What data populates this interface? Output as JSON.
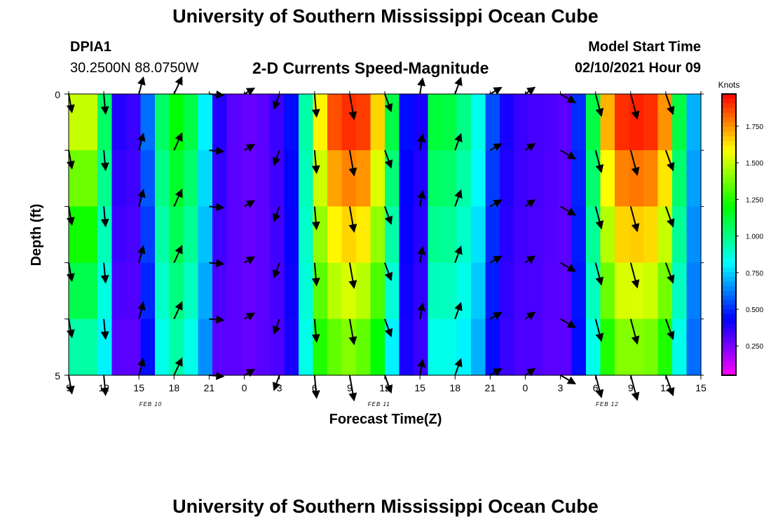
{
  "header": {
    "title": "University of Southern Mississippi Ocean Cube",
    "station": "DPIA1",
    "coordinates": "30.2500N 88.0750W",
    "subtitle": "2-D Currents Speed-Magnitude",
    "model_start_label": "Model Start Time",
    "model_start_value": "02/10/2021 Hour 09"
  },
  "footer": {
    "title": "University of Southern Mississippi Ocean Cube"
  },
  "chart_data": {
    "type": "heatmap",
    "title": "2-D Currents Speed-Magnitude",
    "xlabel": "Forecast Time(Z)",
    "ylabel": "Depth (ft)",
    "x_tick_labels": [
      "9",
      "12",
      "15",
      "18",
      "21",
      "0",
      "3",
      "6",
      "9",
      "12",
      "15",
      "18",
      "21",
      "0",
      "3",
      "6",
      "9",
      "12",
      "15"
    ],
    "date_labels": [
      {
        "text": "FEB 10",
        "hour_index": 7
      },
      {
        "text": "FEB 11",
        "hour_index": 26.5
      },
      {
        "text": "FEB 12",
        "hour_index": 46
      }
    ],
    "xlim_hours": [
      0,
      54
    ],
    "y_tick_labels": [
      "0",
      "5"
    ],
    "ylim_ft": [
      0,
      5
    ],
    "colorbar": {
      "unit_label": "Knots",
      "range": [
        0.05,
        1.97
      ],
      "ticks": [
        "1.750",
        "1.500",
        "1.250",
        "1.000",
        "0.750",
        "0.500",
        "0.250"
      ],
      "tick_values": [
        1.75,
        1.5,
        1.25,
        1.0,
        0.75,
        0.5,
        0.25
      ]
    },
    "speed_surface_knots": [
      1.5,
      1.5,
      1.05,
      0.38,
      0.35,
      0.6,
      1.05,
      1.2,
      1.1,
      0.8,
      0.38,
      0.3,
      0.28,
      0.3,
      0.35,
      0.45,
      0.95,
      1.6,
      1.85,
      1.9,
      1.88,
      1.65,
      1.1,
      0.45,
      0.4,
      1.12,
      1.1,
      1.0,
      0.85,
      0.55,
      0.4,
      0.35,
      0.33,
      0.32,
      0.3,
      0.5,
      1.1,
      1.7,
      1.9,
      1.92,
      1.9,
      1.75,
      1.1,
      0.7
    ],
    "speed_bottom_knots": [
      0.95,
      0.95,
      0.8,
      0.3,
      0.3,
      0.45,
      0.85,
      0.95,
      0.85,
      0.65,
      0.3,
      0.3,
      0.28,
      0.3,
      0.32,
      0.4,
      0.85,
      1.25,
      1.35,
      1.4,
      1.35,
      1.2,
      0.8,
      0.4,
      0.35,
      0.85,
      0.85,
      0.8,
      0.7,
      0.45,
      0.35,
      0.32,
      0.32,
      0.3,
      0.3,
      0.45,
      0.85,
      1.25,
      1.4,
      1.4,
      1.38,
      1.25,
      0.85,
      0.6
    ],
    "arrow_time_hours": [
      0,
      3,
      6,
      9,
      12,
      15,
      18,
      21,
      24,
      27,
      30,
      33,
      36,
      39,
      42,
      45,
      48,
      51
    ],
    "arrow_depth_ft": [
      0,
      1,
      2,
      3,
      4,
      5
    ],
    "arrow_direction_deg_by_time": [
      170,
      175,
      15,
      25,
      95,
      60,
      200,
      175,
      170,
      160,
      10,
      20,
      60,
      55,
      120,
      165,
      165,
      160
    ],
    "arrow_length_knots_by_time": [
      1.3,
      1.4,
      1.2,
      1.3,
      1.0,
      0.8,
      1.1,
      1.6,
      1.8,
      1.3,
      1.1,
      1.2,
      0.9,
      0.8,
      1.2,
      1.6,
      1.8,
      1.5
    ]
  }
}
